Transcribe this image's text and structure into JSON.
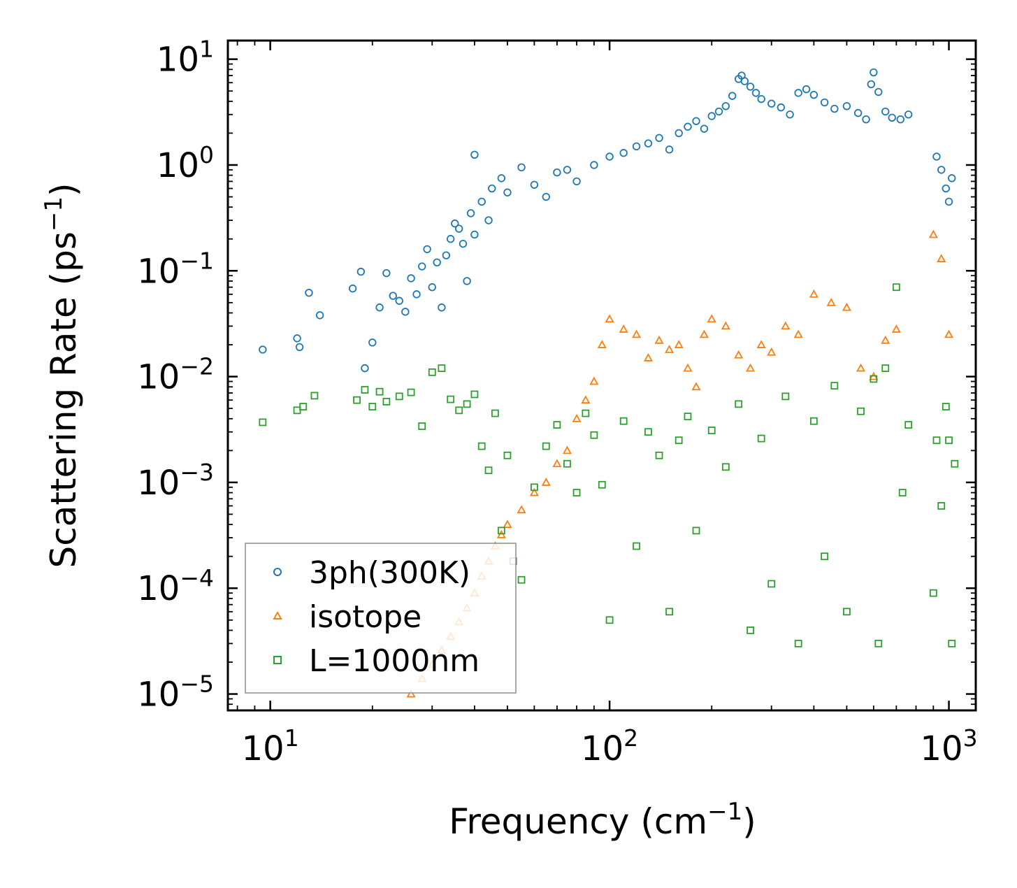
{
  "chart_data": {
    "type": "scatter",
    "title": "",
    "xlabel": "Frequency (cm",
    "xlabel_sup": "−1",
    "xlabel_end": ")",
    "ylabel": "Scattering Rate (ps",
    "ylabel_sup": "−1",
    "ylabel_end": ")",
    "x_scale": "log",
    "y_scale": "log",
    "xlim": [
      7.5,
      1200
    ],
    "ylim": [
      7e-06,
      15
    ],
    "x_ticks": [
      {
        "value": 10,
        "base": "10",
        "exp": "1"
      },
      {
        "value": 100,
        "base": "10",
        "exp": "2"
      },
      {
        "value": 1000,
        "base": "10",
        "exp": "3"
      }
    ],
    "y_ticks": [
      {
        "value": 10,
        "base": "10",
        "exp": "1"
      },
      {
        "value": 1,
        "base": "10",
        "exp": "0"
      },
      {
        "value": 0.1,
        "base": "10",
        "exp": "−1"
      },
      {
        "value": 0.01,
        "base": "10",
        "exp": "−2"
      },
      {
        "value": 0.001,
        "base": "10",
        "exp": "−3"
      },
      {
        "value": 0.0001,
        "base": "10",
        "exp": "−4"
      },
      {
        "value": 1e-05,
        "base": "10",
        "exp": "−5"
      }
    ],
    "legend": {
      "position": "lower-left",
      "entries": [
        {
          "name": "3ph(300K)",
          "color": "#1f77b4",
          "marker": "circle"
        },
        {
          "name": "isotope",
          "color": "#ff7f0e",
          "marker": "triangle"
        },
        {
          "name": "L=1000nm",
          "color": "#2ca02c",
          "marker": "square"
        }
      ]
    },
    "series": [
      {
        "name": "3ph(300K)",
        "color": "#1f77b4",
        "marker": "circle",
        "points": [
          [
            9.5,
            0.018
          ],
          [
            12,
            0.023
          ],
          [
            12.2,
            0.019
          ],
          [
            13,
            0.062
          ],
          [
            14,
            0.038
          ],
          [
            17.5,
            0.068
          ],
          [
            18.5,
            0.098
          ],
          [
            19,
            0.012
          ],
          [
            20,
            0.021
          ],
          [
            21,
            0.045
          ],
          [
            22,
            0.095
          ],
          [
            23,
            0.058
          ],
          [
            24,
            0.052
          ],
          [
            25,
            0.041
          ],
          [
            26,
            0.085
          ],
          [
            27,
            0.06
          ],
          [
            28,
            0.11
          ],
          [
            29,
            0.16
          ],
          [
            30,
            0.07
          ],
          [
            31,
            0.12
          ],
          [
            32,
            0.045
          ],
          [
            33,
            0.14
          ],
          [
            34,
            0.2
          ],
          [
            35,
            0.28
          ],
          [
            36,
            0.25
          ],
          [
            37,
            0.18
          ],
          [
            38,
            0.08
          ],
          [
            39,
            0.35
          ],
          [
            40,
            0.22
          ],
          [
            40,
            1.25
          ],
          [
            42,
            0.45
          ],
          [
            44,
            0.3
          ],
          [
            45,
            0.6
          ],
          [
            48,
            0.75
          ],
          [
            50,
            0.55
          ],
          [
            55,
            0.95
          ],
          [
            60,
            0.65
          ],
          [
            65,
            0.5
          ],
          [
            70,
            0.85
          ],
          [
            75,
            0.9
          ],
          [
            80,
            0.7
          ],
          [
            90,
            1.0
          ],
          [
            100,
            1.2
          ],
          [
            110,
            1.3
          ],
          [
            120,
            1.5
          ],
          [
            130,
            1.6
          ],
          [
            140,
            1.8
          ],
          [
            150,
            1.4
          ],
          [
            160,
            2.0
          ],
          [
            170,
            2.3
          ],
          [
            180,
            2.6
          ],
          [
            190,
            2.2
          ],
          [
            200,
            2.9
          ],
          [
            210,
            3.2
          ],
          [
            220,
            3.6
          ],
          [
            230,
            4.5
          ],
          [
            240,
            6.5
          ],
          [
            245,
            7.0
          ],
          [
            250,
            6.2
          ],
          [
            260,
            5.5
          ],
          [
            270,
            4.8
          ],
          [
            280,
            4.2
          ],
          [
            300,
            3.8
          ],
          [
            320,
            3.5
          ],
          [
            340,
            3.0
          ],
          [
            360,
            4.8
          ],
          [
            380,
            5.2
          ],
          [
            400,
            4.6
          ],
          [
            430,
            3.9
          ],
          [
            460,
            3.4
          ],
          [
            500,
            3.6
          ],
          [
            540,
            3.1
          ],
          [
            570,
            2.7
          ],
          [
            590,
            5.8
          ],
          [
            600,
            7.5
          ],
          [
            620,
            4.9
          ],
          [
            650,
            3.2
          ],
          [
            680,
            2.8
          ],
          [
            720,
            2.7
          ],
          [
            760,
            3.0
          ],
          [
            920,
            1.2
          ],
          [
            950,
            0.9
          ],
          [
            980,
            0.6
          ],
          [
            1000,
            0.45
          ],
          [
            1020,
            0.75
          ]
        ]
      },
      {
        "name": "isotope",
        "color": "#ff7f0e",
        "marker": "triangle",
        "points": [
          [
            26,
            1e-05
          ],
          [
            28,
            1.4e-05
          ],
          [
            30,
            1.9e-05
          ],
          [
            32,
            2.6e-05
          ],
          [
            34,
            3.5e-05
          ],
          [
            36,
            4.8e-05
          ],
          [
            38,
            6.5e-05
          ],
          [
            40,
            9e-05
          ],
          [
            42,
            0.00013
          ],
          [
            44,
            0.00018
          ],
          [
            46,
            0.00025
          ],
          [
            48,
            0.00032
          ],
          [
            50,
            0.0004
          ],
          [
            55,
            0.00055
          ],
          [
            60,
            0.0008
          ],
          [
            65,
            0.001
          ],
          [
            70,
            0.0015
          ],
          [
            75,
            0.002
          ],
          [
            80,
            0.004
          ],
          [
            85,
            0.006
          ],
          [
            90,
            0.009
          ],
          [
            95,
            0.02
          ],
          [
            100,
            0.035
          ],
          [
            110,
            0.028
          ],
          [
            120,
            0.025
          ],
          [
            130,
            0.015
          ],
          [
            140,
            0.022
          ],
          [
            150,
            0.018
          ],
          [
            160,
            0.02
          ],
          [
            170,
            0.012
          ],
          [
            180,
            0.008
          ],
          [
            190,
            0.025
          ],
          [
            200,
            0.035
          ],
          [
            220,
            0.03
          ],
          [
            240,
            0.016
          ],
          [
            260,
            0.012
          ],
          [
            280,
            0.02
          ],
          [
            300,
            0.017
          ],
          [
            330,
            0.03
          ],
          [
            360,
            0.025
          ],
          [
            400,
            0.06
          ],
          [
            450,
            0.05
          ],
          [
            500,
            0.045
          ],
          [
            550,
            0.012
          ],
          [
            600,
            0.01
          ],
          [
            650,
            0.022
          ],
          [
            700,
            0.028
          ],
          [
            900,
            0.22
          ],
          [
            950,
            0.13
          ],
          [
            1000,
            0.025
          ]
        ]
      },
      {
        "name": "L=1000nm",
        "color": "#2ca02c",
        "marker": "square",
        "points": [
          [
            9.5,
            0.0037
          ],
          [
            12,
            0.0048
          ],
          [
            12.5,
            0.0052
          ],
          [
            13.5,
            0.0066
          ],
          [
            18,
            0.006
          ],
          [
            19,
            0.0075
          ],
          [
            20,
            0.0052
          ],
          [
            21,
            0.0072
          ],
          [
            22,
            0.0058
          ],
          [
            24,
            0.0065
          ],
          [
            26,
            0.0071
          ],
          [
            28,
            0.0034
          ],
          [
            30,
            0.011
          ],
          [
            32,
            0.012
          ],
          [
            34,
            0.0061
          ],
          [
            36,
            0.0048
          ],
          [
            38,
            0.0055
          ],
          [
            40,
            0.0068
          ],
          [
            42,
            0.0022
          ],
          [
            44,
            0.0013
          ],
          [
            46,
            0.0045
          ],
          [
            48,
            0.00035
          ],
          [
            50,
            0.0018
          ],
          [
            52,
            0.00018
          ],
          [
            55,
            0.00012
          ],
          [
            60,
            0.0009
          ],
          [
            65,
            0.0022
          ],
          [
            70,
            0.0035
          ],
          [
            75,
            0.0015
          ],
          [
            80,
            0.0008
          ],
          [
            85,
            0.0045
          ],
          [
            90,
            0.0028
          ],
          [
            95,
            0.00095
          ],
          [
            100,
            5e-05
          ],
          [
            110,
            0.0038
          ],
          [
            120,
            0.00025
          ],
          [
            130,
            0.003
          ],
          [
            140,
            0.0018
          ],
          [
            150,
            6e-05
          ],
          [
            160,
            0.0025
          ],
          [
            170,
            0.0042
          ],
          [
            180,
            0.00035
          ],
          [
            200,
            0.0031
          ],
          [
            220,
            0.0014
          ],
          [
            240,
            0.0055
          ],
          [
            260,
            4e-05
          ],
          [
            280,
            0.0026
          ],
          [
            300,
            0.00011
          ],
          [
            330,
            0.0065
          ],
          [
            360,
            3e-05
          ],
          [
            400,
            0.0038
          ],
          [
            430,
            0.0002
          ],
          [
            460,
            0.0082
          ],
          [
            500,
            6e-05
          ],
          [
            550,
            0.0047
          ],
          [
            600,
            0.0095
          ],
          [
            620,
            3e-05
          ],
          [
            650,
            0.012
          ],
          [
            700,
            0.07
          ],
          [
            730,
            0.0008
          ],
          [
            760,
            0.0035
          ],
          [
            900,
            9e-05
          ],
          [
            920,
            0.0025
          ],
          [
            950,
            0.0006
          ],
          [
            980,
            0.0052
          ],
          [
            1000,
            0.0025
          ],
          [
            1020,
            3e-05
          ],
          [
            1040,
            0.0015
          ]
        ]
      }
    ]
  }
}
